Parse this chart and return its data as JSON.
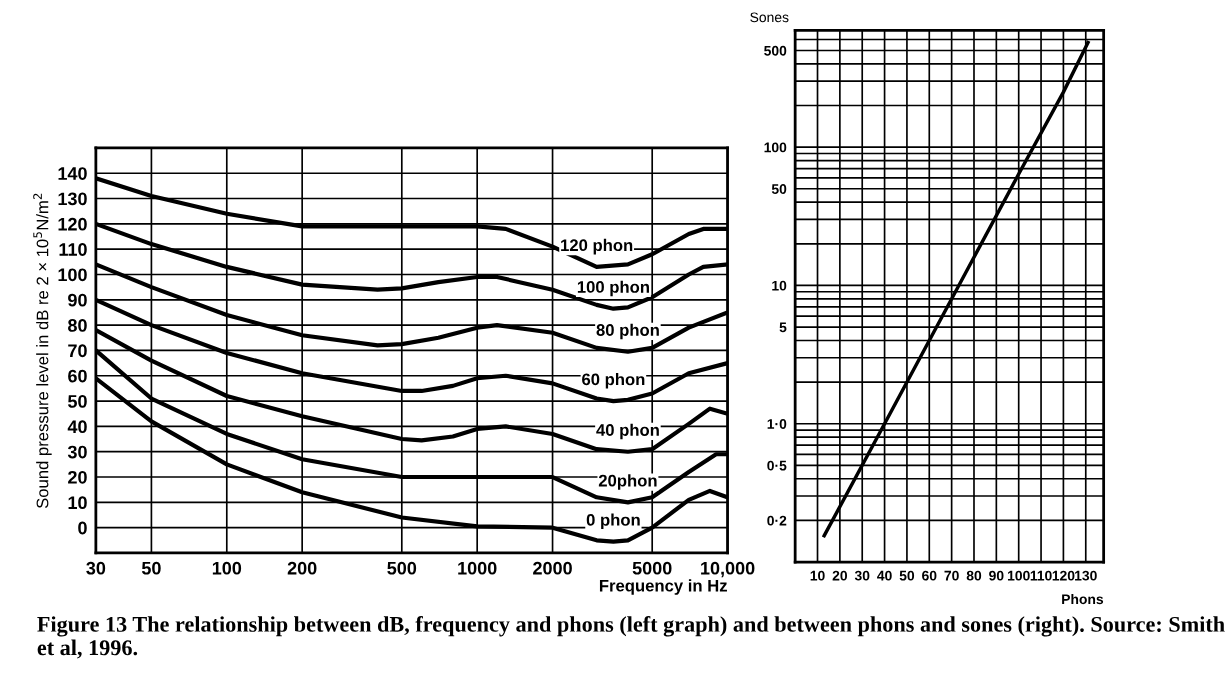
{
  "chart_data": [
    {
      "type": "line",
      "xlabel": "Frequency in Hz",
      "ylabel": "Sound pressure level in dB re 2 × 10$^{5}$N/m$^{2}$",
      "log": "x",
      "grid": true,
      "xlim": [
        30,
        10000
      ],
      "xticks": [
        30,
        50,
        100,
        200,
        500,
        1000,
        2000,
        5000,
        {
          "value": 10000,
          "label": "10,000"
        }
      ],
      "ylim": [
        -10,
        150
      ],
      "yticks": [
        0,
        10,
        20,
        30,
        40,
        50,
        60,
        70,
        80,
        90,
        100,
        110,
        120,
        130,
        140
      ],
      "annotations": [
        "Figure 13 The relationship between dB, frequency and phons (left graph) and between phons and sones (right). Source: Smith et al, 1996."
      ],
      "series": [
        {
          "name": "120 phon",
          "color": "#000000",
          "x": [
            30,
            50,
            100,
            200,
            500,
            1000,
            1300,
            2000,
            3000,
            4000,
            5000,
            7000,
            8000,
            10000
          ],
          "values": [
            138,
            131,
            124,
            119,
            119,
            119,
            118,
            111,
            103,
            104,
            108,
            116,
            118,
            118
          ]
        },
        {
          "name": "100 phon",
          "color": "#000000",
          "x": [
            30,
            50,
            100,
            200,
            400,
            500,
            700,
            1000,
            1200,
            2000,
            3000,
            3500,
            4000,
            5000,
            7000,
            8000,
            10000
          ],
          "values": [
            120,
            112,
            103,
            96,
            94,
            94.5,
            97,
            99,
            99,
            94,
            88,
            86.5,
            87,
            91,
            100,
            103,
            104
          ]
        },
        {
          "name": "80 phon",
          "color": "#000000",
          "x": [
            30,
            50,
            100,
            200,
            400,
            500,
            700,
            1000,
            1200,
            2000,
            3000,
            4000,
            5000,
            7000,
            10000
          ],
          "values": [
            104,
            95,
            84,
            76,
            72,
            72.5,
            75,
            79,
            80,
            77,
            71,
            69.5,
            71,
            79,
            85
          ]
        },
        {
          "name": "60 phon",
          "color": "#000000",
          "x": [
            30,
            50,
            100,
            200,
            500,
            600,
            800,
            1000,
            1300,
            2000,
            3000,
            3500,
            4000,
            5000,
            7000,
            10000
          ],
          "values": [
            90,
            80,
            69,
            61,
            54,
            54,
            56,
            59,
            60,
            57,
            51,
            50,
            50.5,
            53,
            61,
            65
          ]
        },
        {
          "name": "40 phon",
          "color": "#000000",
          "x": [
            30,
            50,
            100,
            200,
            500,
            600,
            800,
            1000,
            1300,
            2000,
            3000,
            4000,
            5000,
            7000,
            8500,
            10000
          ],
          "values": [
            78,
            66,
            52,
            44,
            35,
            34.5,
            36,
            39,
            40,
            37,
            31,
            30,
            31,
            41,
            47,
            45
          ]
        },
        {
          "name": "20phon",
          "color": "#000000",
          "x": [
            30,
            50,
            100,
            200,
            500,
            1000,
            2000,
            3000,
            4000,
            5000,
            7000,
            9000,
            10000
          ],
          "values": [
            70,
            51,
            37,
            27,
            20,
            20,
            20,
            12,
            10,
            12,
            22,
            29,
            29
          ]
        },
        {
          "name": "0 phon",
          "color": "#000000",
          "x": [
            30,
            50,
            100,
            200,
            500,
            1000,
            2000,
            3000,
            3500,
            4000,
            5000,
            7000,
            8500,
            10000
          ],
          "values": [
            59,
            42,
            25,
            14,
            4,
            0.5,
            0,
            -5,
            -5.5,
            -5,
            0,
            11,
            14.5,
            12
          ]
        }
      ]
    },
    {
      "type": "line",
      "xlabel": "Phons",
      "ylabel": "Sones",
      "log": "y",
      "grid": true,
      "xlim": [
        0,
        138
      ],
      "xticks": [
        10,
        20,
        30,
        40,
        50,
        60,
        70,
        80,
        90,
        100,
        110,
        120,
        130
      ],
      "ylim": [
        0.1,
        700
      ],
      "yticks": [
        {
          "value": 0.2,
          "label": "0·2"
        },
        {
          "value": 0.5,
          "label": "0·5"
        },
        {
          "value": 1,
          "label": "1·0"
        },
        5,
        10,
        50,
        100,
        500
      ],
      "series": [
        {
          "color": "#000000",
          "x": [
            13,
            40,
            60,
            80,
            100,
            120,
            131
          ],
          "values": [
            0.155,
            1,
            4,
            16,
            64,
            250,
            570
          ]
        }
      ]
    }
  ]
}
